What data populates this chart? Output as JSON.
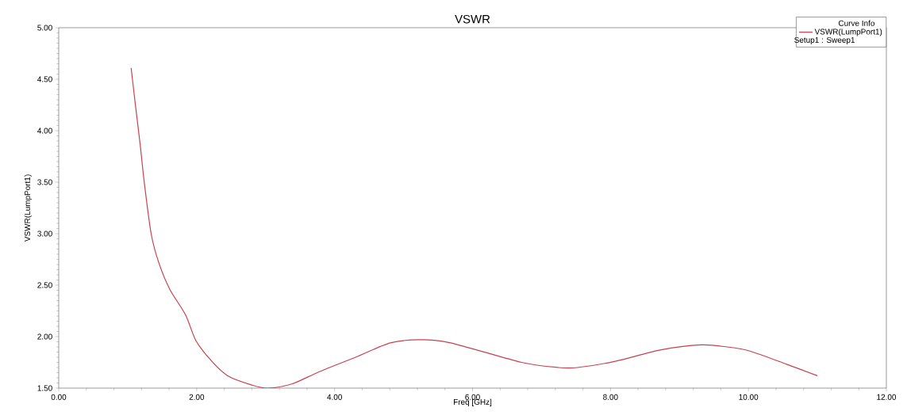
{
  "chart_data": {
    "type": "line",
    "title": "VSWR",
    "xlabel": "Freq [GHz]",
    "ylabel": "VSWR(LumpPort1)",
    "legend_title": "Curve Info",
    "legend": "top right",
    "annotations": [
      "Setup1 : Sweep1"
    ],
    "xlim": [
      0,
      12
    ],
    "ylim": [
      1.5,
      5.0
    ],
    "xticks": [
      {
        "value": 0,
        "label": "0.00"
      },
      {
        "value": 2,
        "label": "2.00"
      },
      {
        "value": 4,
        "label": "4.00"
      },
      {
        "value": 6,
        "label": "6.00"
      },
      {
        "value": 8,
        "label": "8.00"
      },
      {
        "value": 10,
        "label": "10.00"
      },
      {
        "value": 12,
        "label": "12.00"
      }
    ],
    "yticks": [
      {
        "value": 1.5,
        "label": "1.50"
      },
      {
        "value": 2.0,
        "label": "2.00"
      },
      {
        "value": 2.5,
        "label": "2.50"
      },
      {
        "value": 3.0,
        "label": "3.00"
      },
      {
        "value": 3.5,
        "label": "3.50"
      },
      {
        "value": 4.0,
        "label": "4.00"
      },
      {
        "value": 4.5,
        "label": "4.50"
      },
      {
        "value": 5.0,
        "label": "5.00"
      }
    ],
    "series": [
      {
        "name": "VSWR(LumpPort1)",
        "color": "#c8404f",
        "x": [
          1.05,
          1.11,
          1.18,
          1.24,
          1.34,
          1.45,
          1.61,
          1.84,
          1.99,
          2.22,
          2.45,
          2.8,
          3.03,
          3.38,
          3.78,
          4.34,
          4.81,
          5.25,
          5.68,
          6.71,
          7.25,
          7.52,
          8.07,
          8.72,
          9.31,
          9.69,
          10.02,
          10.56,
          11.0
        ],
        "values": [
          4.61,
          4.26,
          3.87,
          3.5,
          3.0,
          2.72,
          2.46,
          2.21,
          1.96,
          1.76,
          1.62,
          1.53,
          1.5,
          1.54,
          1.66,
          1.81,
          1.94,
          1.97,
          1.94,
          1.75,
          1.7,
          1.7,
          1.76,
          1.87,
          1.92,
          1.9,
          1.86,
          1.73,
          1.62
        ]
      }
    ]
  }
}
